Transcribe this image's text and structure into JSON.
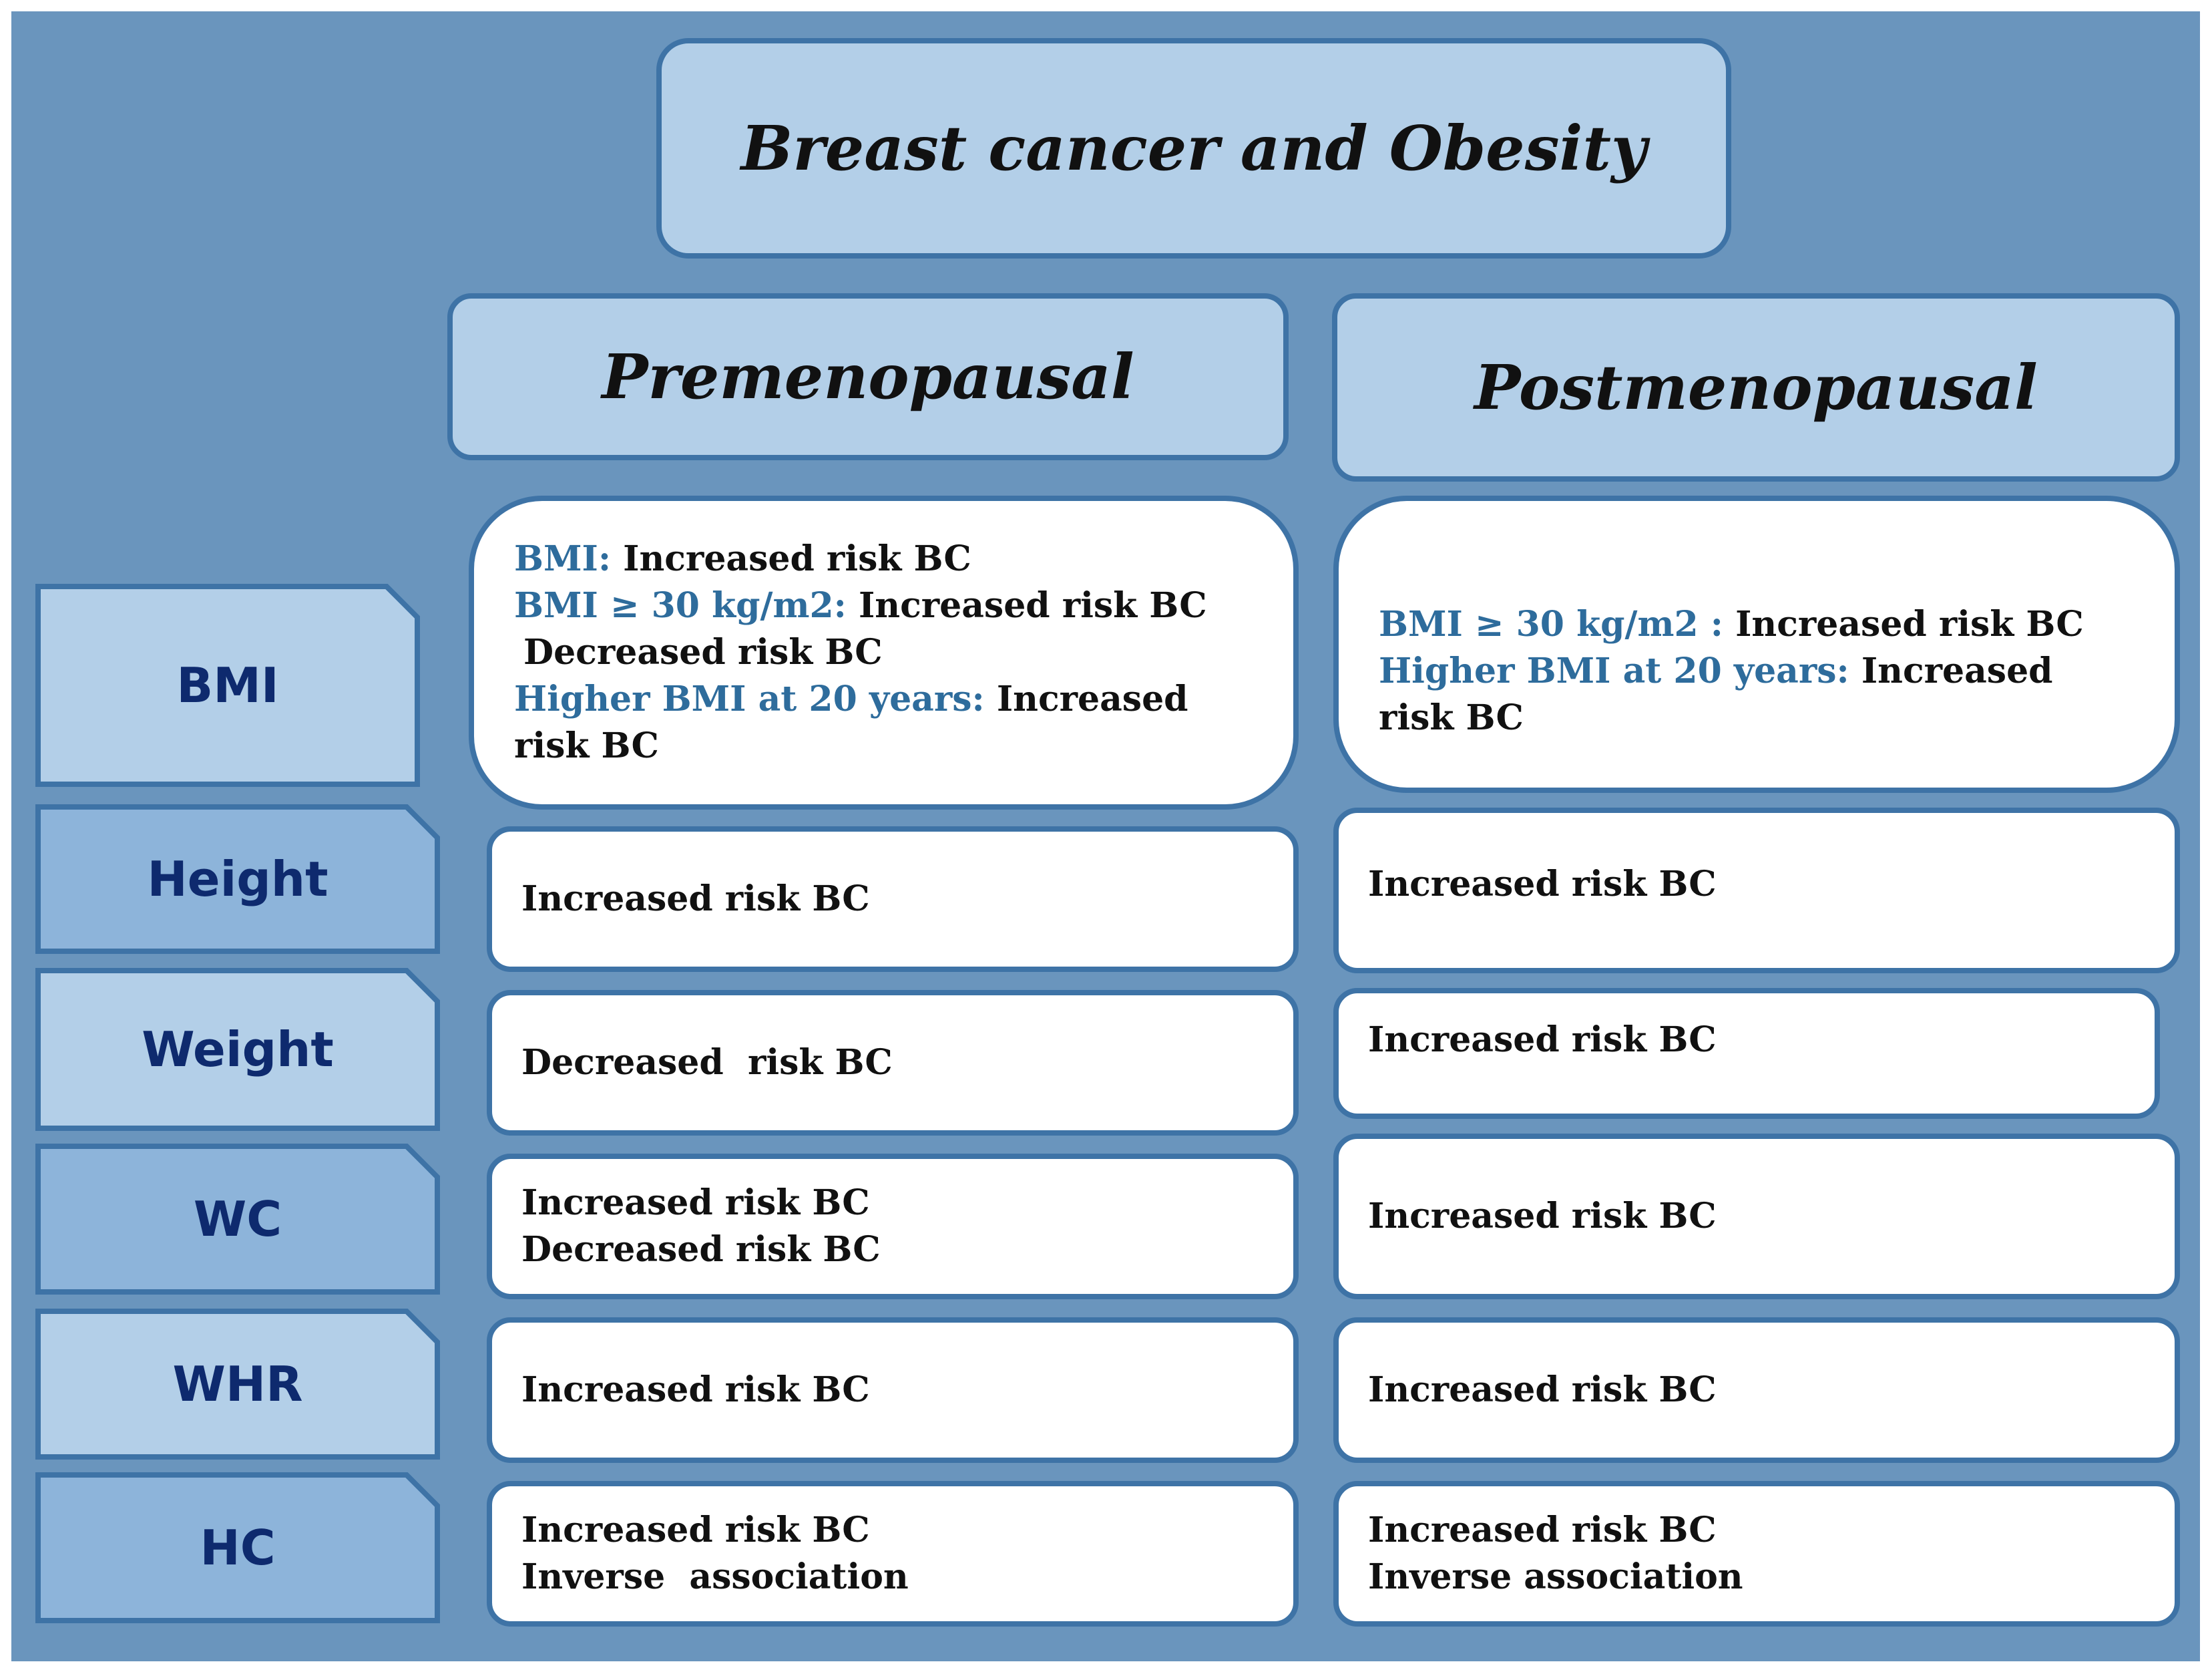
{
  "title": "Breast cancer and Obesity",
  "columns": {
    "pre": "Premenopausal",
    "post": "Postmenopausal"
  },
  "rows": [
    {
      "label": "BMI",
      "pre": [
        {
          "hl": "BMI:",
          "txt": " Increased risk BC"
        },
        {
          "hl": "BMI ≥ 30 kg/m2:",
          "txt": " Increased risk BC"
        },
        {
          "hl": "",
          "txt": "Decreased risk BC"
        },
        {
          "hl": "Higher BMI at 20 years:",
          "txt": " Increased risk BC"
        }
      ],
      "post": [
        {
          "hl": "BMI ≥ 30 kg/m2 :",
          "txt": " Increased risk BC"
        },
        {
          "hl": "Higher BMI at 20 years:",
          "txt": " Increased risk BC"
        }
      ]
    },
    {
      "label": "Height",
      "pre": [
        "Increased risk BC"
      ],
      "post": [
        "Increased risk BC"
      ]
    },
    {
      "label": "Weight",
      "pre": [
        "Decreased  risk BC"
      ],
      "post": [
        "Increased risk BC"
      ]
    },
    {
      "label": "WC",
      "pre": [
        "Increased risk BC",
        "Decreased risk BC"
      ],
      "post": [
        "Increased risk BC"
      ]
    },
    {
      "label": "WHR",
      "pre": [
        "Increased risk BC"
      ],
      "post": [
        "Increased risk BC"
      ]
    },
    {
      "label": "HC",
      "pre": [
        "Increased risk BC",
        "Inverse  association"
      ],
      "post": [
        "Increased risk BC",
        "Inverse association"
      ]
    }
  ],
  "colors": {
    "background": "#6a95bd",
    "header_fill": "#b3cfe8",
    "border": "#3e73a6",
    "label_text": "#0e2a6e",
    "highlight_text": "#2e6c9c"
  }
}
